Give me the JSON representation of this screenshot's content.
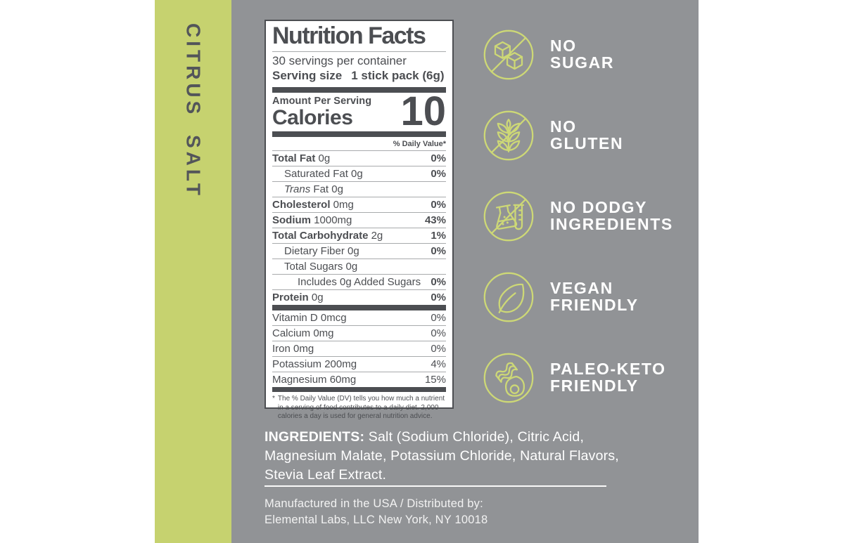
{
  "colors": {
    "strip_green": "#c6d26f",
    "icon_green": "#cdd876",
    "panel_gray": "#919396",
    "label_dark": "#4c4e52",
    "hairline": "#a8aaac"
  },
  "product": {
    "vertical_label": "CITRUS SALT"
  },
  "nutrition": {
    "title": "Nutrition Facts",
    "servings_per_container": "30 servings per container",
    "serving_size_label": "Serving size",
    "serving_size_value": "1 stick pack (6g)",
    "amount_per_serving": "Amount Per Serving",
    "calories_label": "Calories",
    "calories_value": "10",
    "daily_value_header": "% Daily Value*",
    "rows": [
      {
        "bold": "Total Fat",
        "rest": "0g",
        "dv": "0%",
        "indent": 0
      },
      {
        "plain": "Saturated Fat 0g",
        "dv": "0%",
        "indent": 1
      },
      {
        "italic": "Trans",
        "rest": "Fat 0g",
        "dv": "",
        "indent": 1
      },
      {
        "bold": "Cholesterol",
        "rest": "0mg",
        "dv": "0%",
        "indent": 0
      },
      {
        "bold": "Sodium",
        "rest": "1000mg",
        "dv": "43%",
        "indent": 0
      },
      {
        "bold": "Total Carbohydrate",
        "rest": "2g",
        "dv": "1%",
        "indent": 0
      },
      {
        "plain": "Dietary Fiber 0g",
        "dv": "0%",
        "indent": 1
      },
      {
        "plain": "Total Sugars 0g",
        "dv": "",
        "indent": 1
      },
      {
        "plain": "Includes 0g Added Sugars",
        "dv": "0%",
        "indent": 2
      },
      {
        "bold": "Protein",
        "rest": "0g",
        "dv": "0%",
        "indent": 0
      }
    ],
    "micro_rows": [
      {
        "plain": "Vitamin D 0mcg",
        "dv": "0%",
        "indent": 0
      },
      {
        "plain": "Calcium 0mg",
        "dv": "0%",
        "indent": 0
      },
      {
        "plain": "Iron 0mg",
        "dv": "0%",
        "indent": 0
      },
      {
        "plain": "Potassium 200mg",
        "dv": "4%",
        "indent": 0
      },
      {
        "plain": "Magnesium 60mg",
        "dv": "15%",
        "indent": 0
      }
    ],
    "footnote_marker": "*",
    "footnote": "The % Daily Value (DV) tells you how much a nutrient in a serving of food contributes to a daily diet. 2,000 calories a day is used for general nutrition advice."
  },
  "features": [
    {
      "icon": "no-sugar-icon",
      "line1": "NO",
      "line2": "SUGAR"
    },
    {
      "icon": "no-gluten-icon",
      "line1": "NO",
      "line2": "GLUTEN"
    },
    {
      "icon": "no-dodgy-ingredients-icon",
      "line1": "NO DODGY",
      "line2": "INGREDIENTS"
    },
    {
      "icon": "vegan-friendly-icon",
      "line1": "VEGAN",
      "line2": "FRIENDLY"
    },
    {
      "icon": "paleo-keto-friendly-icon",
      "line1": "PALEO-KETO",
      "line2": "FRIENDLY"
    }
  ],
  "ingredients": {
    "label": "INGREDIENTS:",
    "text": " Salt (Sodium Chloride), Citric Acid, Magnesium Malate, Potassium Chloride, Natural Flavors, Stevia Leaf Extract."
  },
  "distribution": {
    "line1": "Manufactured in the USA / Distributed by:",
    "line2": "Elemental Labs, LLC New York, NY 10018"
  }
}
